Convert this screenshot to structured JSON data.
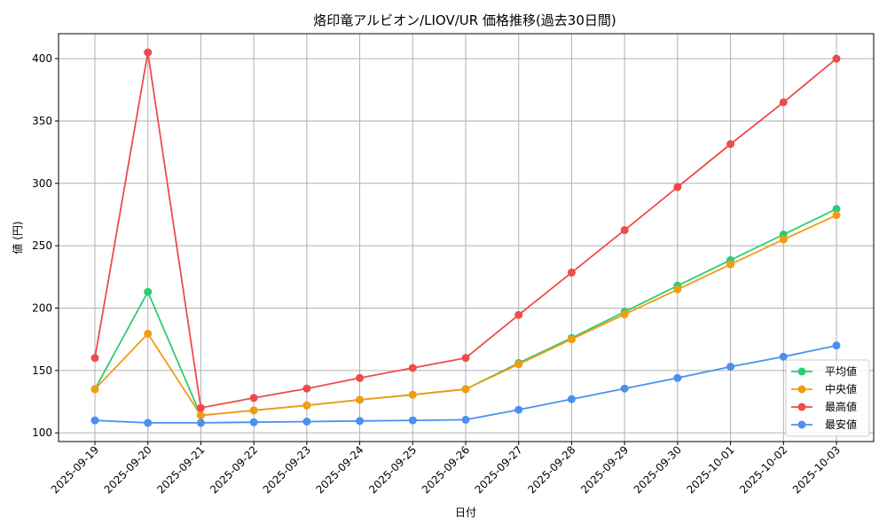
{
  "chart_data": {
    "type": "line",
    "title": "烙印竜アルビオン/LIOV/UR 価格推移(過去30日間)",
    "xlabel": "日付",
    "ylabel": "値 (円)",
    "categories": [
      "2025-09-19",
      "2025-09-20",
      "2025-09-21",
      "2025-09-22",
      "2025-09-23",
      "2025-09-24",
      "2025-09-25",
      "2025-09-26",
      "2025-09-27",
      "2025-09-28",
      "2025-09-29",
      "2025-09-30",
      "2025-10-01",
      "2025-10-02",
      "2025-10-03"
    ],
    "ylim": [
      93,
      420
    ],
    "yticks": [
      100,
      150,
      200,
      250,
      300,
      350,
      400
    ],
    "grid": true,
    "legend_position": "bottom-right",
    "series": [
      {
        "name": "平均値",
        "color": "#2ecc71",
        "values": [
          135,
          213,
          114,
          118,
          122,
          126.5,
          130.5,
          135,
          156,
          176,
          197,
          218,
          238.5,
          259,
          279.5
        ]
      },
      {
        "name": "中央値",
        "color": "#f39c12",
        "values": [
          135,
          179.5,
          114,
          118,
          122,
          126.5,
          130.5,
          135,
          155,
          175,
          195,
          215,
          235,
          255,
          274.5
        ]
      },
      {
        "name": "最高値",
        "color": "#ef4b4b",
        "values": [
          160,
          405,
          120,
          128,
          135.5,
          144,
          152,
          160,
          194.5,
          228.5,
          262.5,
          297,
          331.5,
          365,
          400
        ]
      },
      {
        "name": "最安値",
        "color": "#4a90f0",
        "values": [
          110,
          108,
          108,
          108.5,
          109,
          109.5,
          110,
          110.5,
          118.5,
          127,
          135.5,
          144,
          153,
          161,
          170
        ]
      }
    ]
  }
}
